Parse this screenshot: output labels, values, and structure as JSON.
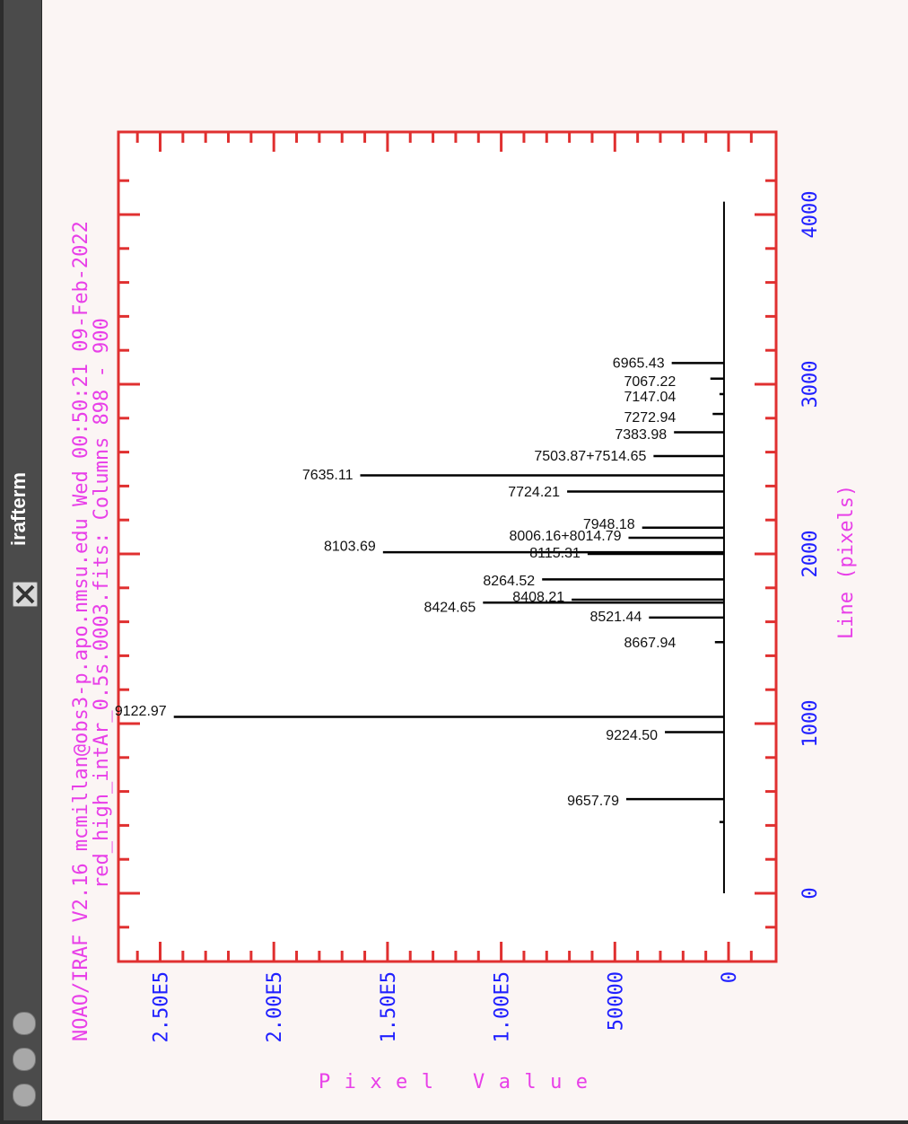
{
  "window": {
    "title": "irafterm"
  },
  "header": {
    "line1": "NOAO/IRAF V2.16 mcmillan@obs3-p.apo.nmsu.edu Wed 00:50:21 09-Feb-2022",
    "line2": "red_high_intAr_0.5s.0003.fits: Columns 898 - 900"
  },
  "chart_data": {
    "type": "line",
    "orientation": "rotated",
    "xlabel": "Line (pixels)",
    "ylabel": "Pixel Value",
    "xlim": [
      -400,
      4400
    ],
    "ylim": [
      -30000,
      265000
    ],
    "x_ticks": [
      0,
      1000,
      2000,
      3000,
      4000
    ],
    "x_tick_labels": [
      "0",
      "1000",
      "2000",
      "3000",
      "4000"
    ],
    "y_ticks": [
      0,
      50000,
      100000,
      150000,
      200000,
      250000
    ],
    "y_tick_labels": [
      "0",
      "50000",
      "1.00E5",
      "1.50E5",
      "2.00E5",
      "2.50E5"
    ],
    "baseline": 2000,
    "x_range": [
      0,
      4076
    ],
    "peaks": [
      {
        "x": 3125,
        "value": 25000,
        "label": ""
      },
      {
        "x": 3033,
        "value": 8000,
        "label": ""
      },
      {
        "x": 2942,
        "value": 4000,
        "label": ""
      },
      {
        "x": 2825,
        "value": 7000,
        "label": ""
      },
      {
        "x": 2717,
        "value": 24000,
        "label": ""
      },
      {
        "x": 2577,
        "value": 33000,
        "label": ""
      },
      {
        "x": 2463,
        "value": 162000,
        "label": ""
      },
      {
        "x": 2368,
        "value": 71000,
        "label": ""
      },
      {
        "x": 2155,
        "value": 38000,
        "label": ""
      },
      {
        "x": 2095,
        "value": 44000,
        "label": ""
      },
      {
        "x": 2000,
        "value": 62000,
        "label": ""
      },
      {
        "x": 2010,
        "value": 152000,
        "label": ""
      },
      {
        "x": 1850,
        "value": 82000,
        "label": ""
      },
      {
        "x": 1730,
        "value": 69000,
        "label": ""
      },
      {
        "x": 1713,
        "value": 108000,
        "label": ""
      },
      {
        "x": 1625,
        "value": 35000,
        "label": ""
      },
      {
        "x": 1480,
        "value": 6000,
        "label": ""
      },
      {
        "x": 1040,
        "value": 244000,
        "label": ""
      },
      {
        "x": 950,
        "value": 28000,
        "label": ""
      },
      {
        "x": 555,
        "value": 45000,
        "label": ""
      },
      {
        "x": 420,
        "value": 4000,
        "label": ""
      }
    ],
    "annotations": [
      {
        "text": "6965.43",
        "x": 3125
      },
      {
        "text": "7067.22",
        "x": 3017
      },
      {
        "text": "7147.04",
        "x": 2925
      },
      {
        "text": "7272.94",
        "x": 2805
      },
      {
        "text": "7383.98",
        "x": 2705
      },
      {
        "text": "7503.87+7514.65",
        "x": 2577
      },
      {
        "text": "7635.11",
        "x": 2465
      },
      {
        "text": "7724.21",
        "x": 2365
      },
      {
        "text": "7948.18",
        "x": 2175
      },
      {
        "text": "8006.16+8014.79",
        "x": 2105
      },
      {
        "text": "8103.69",
        "x": 2045
      },
      {
        "text": "8115.31",
        "x": 2005
      },
      {
        "text": "8264.52",
        "x": 1840
      },
      {
        "text": "8408.21",
        "x": 1745
      },
      {
        "text": "8424.65",
        "x": 1685
      },
      {
        "text": "8521.44",
        "x": 1630
      },
      {
        "text": "8667.94",
        "x": 1475
      },
      {
        "text": "9122.97",
        "x": 1075
      },
      {
        "text": "9224.50",
        "x": 930
      },
      {
        "text": "9657.79",
        "x": 545
      }
    ]
  }
}
